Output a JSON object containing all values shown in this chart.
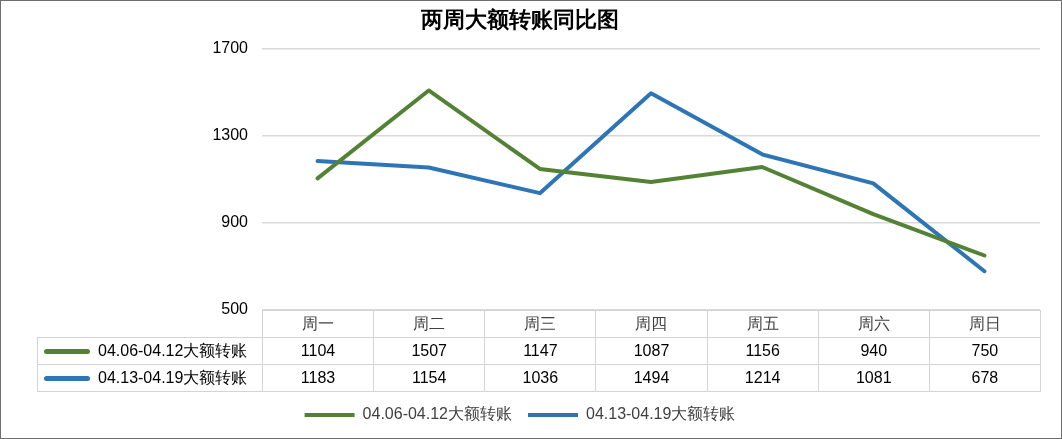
{
  "chart_data": {
    "type": "line",
    "title": "两周大额转账同比图",
    "categories": [
      "周一",
      "周二",
      "周三",
      "周四",
      "周五",
      "周六",
      "周日"
    ],
    "series": [
      {
        "name": "04.06-04.12大额转账",
        "color": "#548235",
        "values": [
          1104,
          1507,
          1147,
          1087,
          1156,
          940,
          750
        ]
      },
      {
        "name": "04.13-04.19大额转账",
        "color": "#2e75b6",
        "values": [
          1183,
          1154,
          1036,
          1494,
          1214,
          1081,
          678
        ]
      }
    ],
    "ylim": [
      500,
      1700
    ],
    "yticks": [
      500,
      900,
      1300,
      1700
    ],
    "grid": "y",
    "legend": "bottom",
    "marker": "none",
    "data_labels": true
  }
}
